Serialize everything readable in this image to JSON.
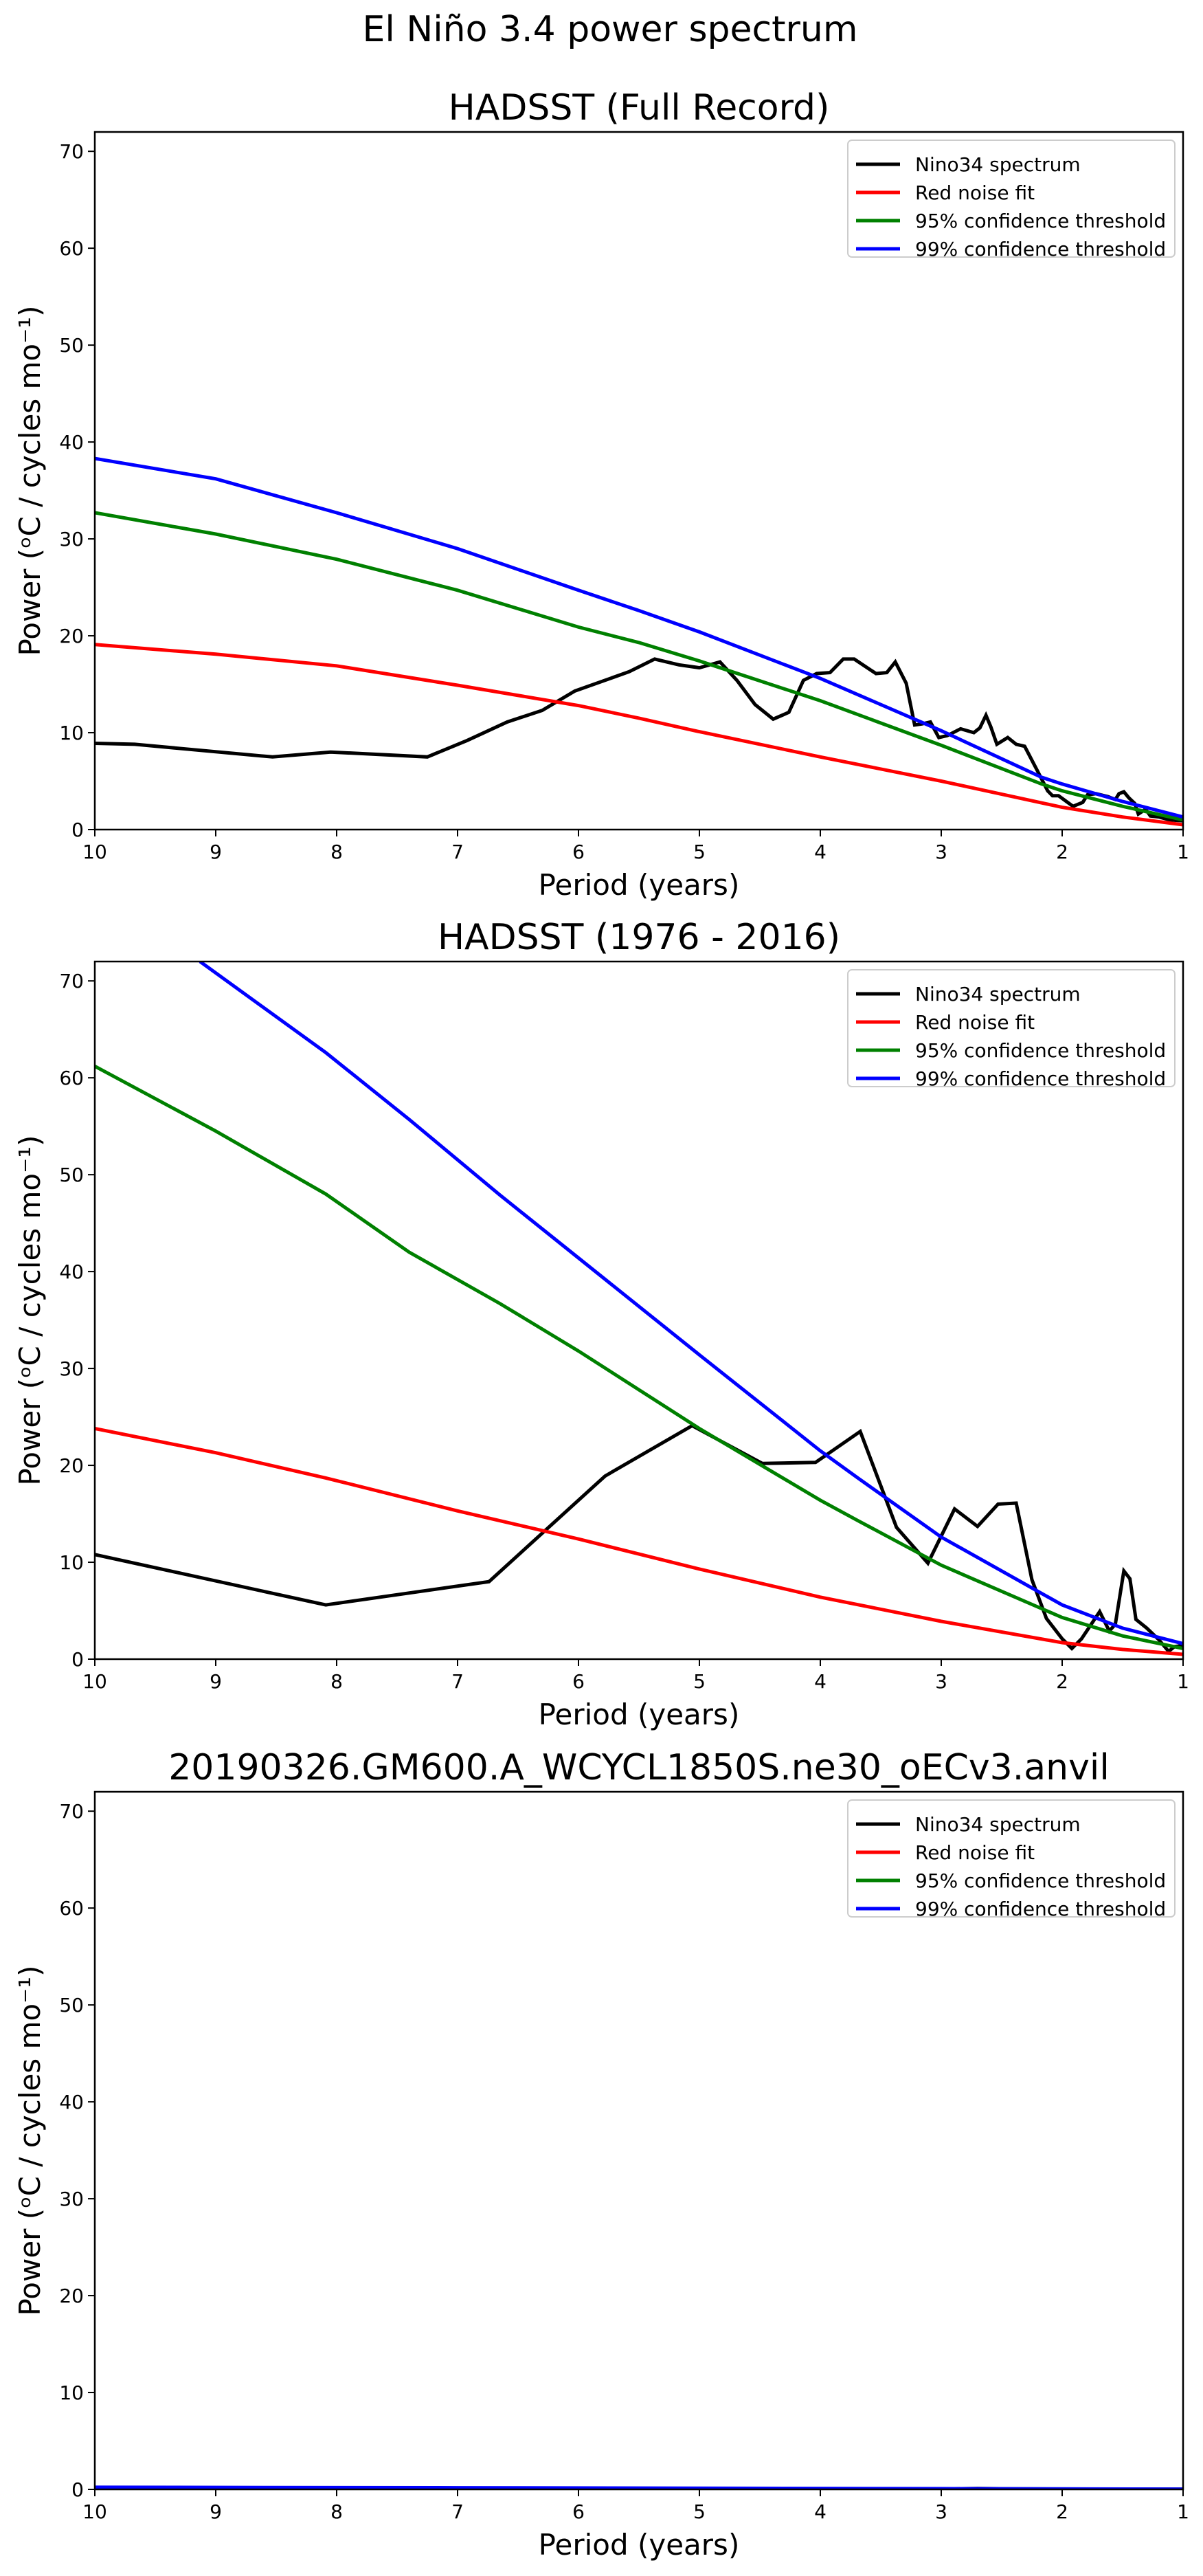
{
  "figure": {
    "suptitle": "El Niño 3.4 power spectrum"
  },
  "colors": {
    "spectrum": "#000000",
    "red_noise": "#ff0000",
    "conf95": "#008000",
    "conf99": "#0000ff",
    "legend_border": "#cccccc"
  },
  "chart_data": [
    {
      "type": "line",
      "title": "HADSST (Full Record)",
      "xlabel": "Period (years)",
      "ylabel": "Power (ᵒC / cycles mo⁻¹)",
      "xlim": [
        10,
        1
      ],
      "ylim": [
        0,
        72
      ],
      "xticks": [
        10,
        9,
        8,
        7,
        6,
        5,
        4,
        3,
        2,
        1
      ],
      "yticks": [
        0,
        10,
        20,
        30,
        40,
        50,
        60,
        70
      ],
      "grid": false,
      "legend_position": "top-right",
      "series": [
        {
          "name": "Nino34 spectrum",
          "color_key": "spectrum",
          "x": [
            10.0,
            9.67,
            8.53,
            8.05,
            7.25,
            6.92,
            6.59,
            6.3,
            6.03,
            5.67,
            5.58,
            5.37,
            5.17,
            5.0,
            4.83,
            4.69,
            4.54,
            4.39,
            4.26,
            4.14,
            4.03,
            3.92,
            3.81,
            3.72,
            3.54,
            3.45,
            3.38,
            3.29,
            3.22,
            3.16,
            3.09,
            3.02,
            2.95,
            2.84,
            2.73,
            2.68,
            2.63,
            2.59,
            2.54,
            2.45,
            2.38,
            2.31,
            2.21,
            2.12,
            2.08,
            2.03,
            1.91,
            1.83,
            1.79,
            1.72,
            1.62,
            1.56,
            1.53,
            1.49,
            1.45,
            1.4,
            1.37,
            1.31,
            1.27,
            1.2,
            1.11,
            1.0
          ],
          "y": [
            8.9,
            8.8,
            7.5,
            8.0,
            7.5,
            9.2,
            11.1,
            12.3,
            14.3,
            15.9,
            16.3,
            17.6,
            17.0,
            16.7,
            17.3,
            15.4,
            12.9,
            11.4,
            12.1,
            15.4,
            16.1,
            16.2,
            17.6,
            17.6,
            16.1,
            16.2,
            17.3,
            15.1,
            10.8,
            10.9,
            11.1,
            9.5,
            9.7,
            10.4,
            10.0,
            10.5,
            11.8,
            10.6,
            8.8,
            9.5,
            8.8,
            8.6,
            6.2,
            4.0,
            3.5,
            3.5,
            2.4,
            2.8,
            3.6,
            3.7,
            3.4,
            3.1,
            3.7,
            3.9,
            3.3,
            2.7,
            1.6,
            2.1,
            1.4,
            1.3,
            1.0,
            0.9
          ]
        },
        {
          "name": "Red noise fit",
          "color_key": "red_noise",
          "x": [
            10,
            9,
            8,
            7,
            6,
            5.5,
            5,
            4,
            3,
            2,
            1.5,
            1
          ],
          "y": [
            19.1,
            18.1,
            16.9,
            14.9,
            12.8,
            11.5,
            10.1,
            7.5,
            5.0,
            2.3,
            1.3,
            0.5
          ]
        },
        {
          "name": "95% confidence threshold",
          "color_key": "conf95",
          "x": [
            10,
            9,
            8,
            7,
            6,
            5.5,
            5,
            4,
            3,
            2.17,
            2,
            1.5,
            1
          ],
          "y": [
            32.7,
            30.5,
            27.9,
            24.7,
            20.9,
            19.3,
            17.4,
            13.3,
            8.7,
            4.7,
            4.0,
            2.4,
            1.0
          ]
        },
        {
          "name": "99% confidence threshold",
          "color_key": "conf99",
          "x": [
            10,
            9,
            8,
            7,
            6,
            5.5,
            5,
            4,
            3,
            2.17,
            2,
            1.5,
            1
          ],
          "y": [
            38.3,
            36.2,
            32.7,
            29.0,
            24.7,
            22.6,
            20.4,
            15.6,
            10.2,
            5.4,
            4.7,
            2.9,
            1.3
          ]
        }
      ]
    },
    {
      "type": "line",
      "title": "HADSST (1976 - 2016)",
      "xlabel": "Period (years)",
      "ylabel": "Power (ᵒC / cycles mo⁻¹)",
      "xlim": [
        10,
        1
      ],
      "ylim": [
        0,
        72
      ],
      "xticks": [
        10,
        9,
        8,
        7,
        6,
        5,
        4,
        3,
        2,
        1
      ],
      "yticks": [
        0,
        10,
        20,
        30,
        40,
        50,
        60,
        70
      ],
      "grid": false,
      "legend_position": "top-right",
      "series": [
        {
          "name": "Nino34 spectrum",
          "color_key": "spectrum",
          "x": [
            10.0,
            8.09,
            6.74,
            5.78,
            5.06,
            4.48,
            4.04,
            3.67,
            3.37,
            3.11,
            2.89,
            2.7,
            2.53,
            2.38,
            2.25,
            2.13,
            2.0,
            1.92,
            1.84,
            1.69,
            1.61,
            1.56,
            1.49,
            1.44,
            1.39,
            1.3,
            1.2,
            1.12,
            1.07,
            1.0
          ],
          "y": [
            10.8,
            5.6,
            8.0,
            18.9,
            24.1,
            20.2,
            20.3,
            23.5,
            13.6,
            9.9,
            15.5,
            13.7,
            16.0,
            16.1,
            8.2,
            4.2,
            2.1,
            1.1,
            2.1,
            4.9,
            2.9,
            3.6,
            9.1,
            8.3,
            4.1,
            3.2,
            2.0,
            0.8,
            1.3,
            1.4
          ]
        },
        {
          "name": "Red noise fit",
          "color_key": "red_noise",
          "x": [
            10,
            9,
            8.09,
            7,
            6,
            5,
            4,
            3,
            2,
            1.5,
            1
          ],
          "y": [
            23.8,
            21.3,
            18.7,
            15.3,
            12.4,
            9.3,
            6.4,
            3.9,
            1.7,
            1.0,
            0.5
          ]
        },
        {
          "name": "95% confidence threshold",
          "color_key": "conf95",
          "x": [
            10,
            9,
            8.09,
            7.4,
            6.65,
            6,
            5,
            4,
            3.69,
            3,
            2,
            1.5,
            1
          ],
          "y": [
            61.2,
            54.5,
            48.0,
            42.0,
            36.7,
            31.8,
            23.8,
            16.4,
            14.3,
            9.7,
            4.3,
            2.4,
            1.1
          ]
        },
        {
          "name": "99% confidence threshold",
          "color_key": "conf99",
          "x": [
            9.13,
            8.09,
            7.4,
            6.65,
            6.24,
            5,
            4,
            3.69,
            3,
            2,
            1.5,
            1
          ],
          "y": [
            72.0,
            62.6,
            55.7,
            47.9,
            43.8,
            31.4,
            21.5,
            18.7,
            12.6,
            5.6,
            3.2,
            1.6
          ]
        }
      ]
    },
    {
      "type": "line",
      "title": "20190326.GM600.A_WCYCL1850S.ne30_oECv3.anvil",
      "xlabel": "Period (years)",
      "ylabel": "Power (ᵒC / cycles mo⁻¹)",
      "xlim": [
        10,
        1
      ],
      "ylim": [
        0,
        72
      ],
      "xticks": [
        10,
        9,
        8,
        7,
        6,
        5,
        4,
        3,
        2,
        1
      ],
      "yticks": [
        0,
        10,
        20,
        30,
        40,
        50,
        60,
        70
      ],
      "grid": false,
      "legend_position": "top-right",
      "series": [
        {
          "name": "Nino34 spectrum",
          "color_key": "spectrum",
          "x": [
            10,
            8,
            6,
            4,
            3,
            2.7,
            2.4,
            2,
            1
          ],
          "y": [
            0.05,
            0.05,
            0.04,
            0.03,
            0.05,
            0.1,
            0.05,
            0.03,
            0.02
          ]
        },
        {
          "name": "Red noise fit",
          "color_key": "red_noise",
          "x": [
            10,
            7,
            5,
            3,
            1
          ],
          "y": [
            0.1,
            0.08,
            0.06,
            0.04,
            0.01
          ]
        },
        {
          "name": "95% confidence threshold",
          "color_key": "conf95",
          "x": [
            10,
            7,
            5,
            3,
            1
          ],
          "y": [
            0.17,
            0.14,
            0.1,
            0.06,
            0.02
          ]
        },
        {
          "name": "99% confidence threshold",
          "color_key": "conf99",
          "x": [
            10,
            7,
            5,
            3,
            1
          ],
          "y": [
            0.22,
            0.17,
            0.13,
            0.08,
            0.03
          ]
        }
      ]
    }
  ]
}
